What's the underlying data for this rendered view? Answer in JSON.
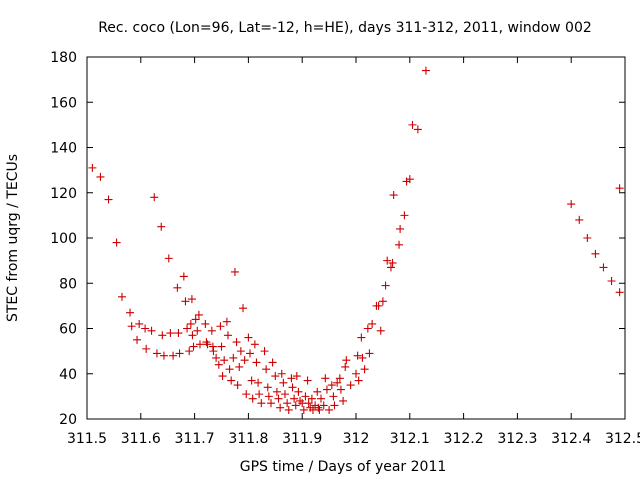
{
  "chart_data": {
    "type": "scatter",
    "title": "Rec. coco (Lon=96, Lat=-12, h=HE), days 311-312, 2011, window 002",
    "xlabel": "GPS time / Days of year 2011",
    "ylabel": "STEC from uqrg / TECUs",
    "xlim": [
      311.5,
      312.5
    ],
    "ylim": [
      20,
      180
    ],
    "x_ticks": [
      311.5,
      311.6,
      311.7,
      311.8,
      311.9,
      312.0,
      312.1,
      312.2,
      312.3,
      312.4,
      312.5
    ],
    "x_tick_labels": [
      "311.5",
      "311.6",
      "311.7",
      "311.8",
      "311.9",
      "312",
      "312.1",
      "312.2",
      "312.3",
      "312.4",
      "312.5"
    ],
    "y_ticks": [
      20,
      40,
      60,
      80,
      100,
      120,
      140,
      160,
      180
    ],
    "y_tick_labels": [
      "20",
      "40",
      "60",
      "80",
      "100",
      "120",
      "140",
      "160",
      "180"
    ],
    "grid": false,
    "marker": "+",
    "marker_color": "#cc0000",
    "points": [
      [
        311.51,
        131
      ],
      [
        311.525,
        127
      ],
      [
        311.54,
        117
      ],
      [
        311.555,
        98
      ],
      [
        311.565,
        74
      ],
      [
        311.58,
        67
      ],
      [
        311.583,
        61
      ],
      [
        311.593,
        55
      ],
      [
        311.597,
        62
      ],
      [
        311.608,
        60
      ],
      [
        311.61,
        51
      ],
      [
        311.62,
        59
      ],
      [
        311.625,
        118
      ],
      [
        311.63,
        49
      ],
      [
        311.638,
        105
      ],
      [
        311.64,
        57
      ],
      [
        311.643,
        48
      ],
      [
        311.652,
        91
      ],
      [
        311.655,
        58
      ],
      [
        311.66,
        48
      ],
      [
        311.668,
        78
      ],
      [
        311.67,
        58
      ],
      [
        311.672,
        49
      ],
      [
        311.68,
        83
      ],
      [
        311.683,
        72
      ],
      [
        311.686,
        60
      ],
      [
        311.69,
        50
      ],
      [
        311.693,
        62
      ],
      [
        311.695,
        73
      ],
      [
        311.696,
        57
      ],
      [
        311.698,
        52
      ],
      [
        311.702,
        64
      ],
      [
        311.705,
        59
      ],
      [
        311.708,
        66
      ],
      [
        311.71,
        53
      ],
      [
        311.72,
        62
      ],
      [
        311.722,
        54
      ],
      [
        311.724,
        53
      ],
      [
        311.732,
        59
      ],
      [
        311.734,
        52
      ],
      [
        311.735,
        50
      ],
      [
        311.74,
        47
      ],
      [
        311.745,
        44
      ],
      [
        311.748,
        61
      ],
      [
        311.75,
        52
      ],
      [
        311.752,
        39
      ],
      [
        311.755,
        46
      ],
      [
        311.76,
        63
      ],
      [
        311.762,
        57
      ],
      [
        311.765,
        42
      ],
      [
        311.768,
        37
      ],
      [
        311.772,
        47
      ],
      [
        311.775,
        85
      ],
      [
        311.778,
        54
      ],
      [
        311.78,
        35
      ],
      [
        311.783,
        43
      ],
      [
        311.786,
        50
      ],
      [
        311.79,
        69
      ],
      [
        311.793,
        46
      ],
      [
        311.796,
        31
      ],
      [
        311.8,
        56
      ],
      [
        311.803,
        49
      ],
      [
        311.806,
        37
      ],
      [
        311.808,
        29
      ],
      [
        311.812,
        53
      ],
      [
        311.815,
        45
      ],
      [
        311.818,
        36
      ],
      [
        311.82,
        31
      ],
      [
        311.824,
        27
      ],
      [
        311.83,
        50
      ],
      [
        311.833,
        42
      ],
      [
        311.836,
        34
      ],
      [
        311.838,
        30
      ],
      [
        311.842,
        27
      ],
      [
        311.845,
        45
      ],
      [
        311.85,
        39
      ],
      [
        311.853,
        32
      ],
      [
        311.856,
        29
      ],
      [
        311.859,
        25
      ],
      [
        311.862,
        40
      ],
      [
        311.865,
        36
      ],
      [
        311.868,
        31
      ],
      [
        311.872,
        27
      ],
      [
        311.875,
        24
      ],
      [
        311.88,
        38
      ],
      [
        311.882,
        34
      ],
      [
        311.885,
        29
      ],
      [
        311.888,
        26
      ],
      [
        311.89,
        39
      ],
      [
        311.893,
        32
      ],
      [
        311.896,
        28
      ],
      [
        311.9,
        27
      ],
      [
        311.903,
        24
      ],
      [
        311.906,
        30
      ],
      [
        311.91,
        37
      ],
      [
        311.912,
        27
      ],
      [
        311.915,
        25
      ],
      [
        311.918,
        29
      ],
      [
        311.92,
        24
      ],
      [
        311.924,
        26
      ],
      [
        311.928,
        32
      ],
      [
        311.93,
        25
      ],
      [
        311.932,
        24
      ],
      [
        311.935,
        29
      ],
      [
        311.94,
        26
      ],
      [
        311.943,
        38
      ],
      [
        311.946,
        33
      ],
      [
        311.95,
        24
      ],
      [
        311.955,
        35
      ],
      [
        311.958,
        30
      ],
      [
        311.96,
        26
      ],
      [
        311.965,
        36
      ],
      [
        311.97,
        38
      ],
      [
        311.972,
        33
      ],
      [
        311.976,
        28
      ],
      [
        311.98,
        43
      ],
      [
        311.982,
        46
      ],
      [
        311.99,
        35
      ],
      [
        312.0,
        40
      ],
      [
        312.003,
        48
      ],
      [
        312.005,
        37
      ],
      [
        312.01,
        56
      ],
      [
        312.012,
        47
      ],
      [
        312.016,
        42
      ],
      [
        312.022,
        60
      ],
      [
        312.025,
        49
      ],
      [
        312.03,
        62
      ],
      [
        312.038,
        70
      ],
      [
        312.042,
        70
      ],
      [
        312.046,
        59
      ],
      [
        312.05,
        72
      ],
      [
        312.055,
        79
      ],
      [
        312.058,
        90
      ],
      [
        312.065,
        87
      ],
      [
        312.068,
        89
      ],
      [
        312.07,
        119
      ],
      [
        312.08,
        97
      ],
      [
        312.082,
        104
      ],
      [
        312.09,
        110
      ],
      [
        312.094,
        125
      ],
      [
        312.1,
        126
      ],
      [
        312.105,
        150
      ],
      [
        312.115,
        148
      ],
      [
        312.13,
        174
      ],
      [
        312.4,
        115
      ],
      [
        312.415,
        108
      ],
      [
        312.43,
        100
      ],
      [
        312.445,
        93
      ],
      [
        312.46,
        87
      ],
      [
        312.475,
        81
      ],
      [
        312.49,
        76
      ],
      [
        312.49,
        122
      ]
    ]
  }
}
